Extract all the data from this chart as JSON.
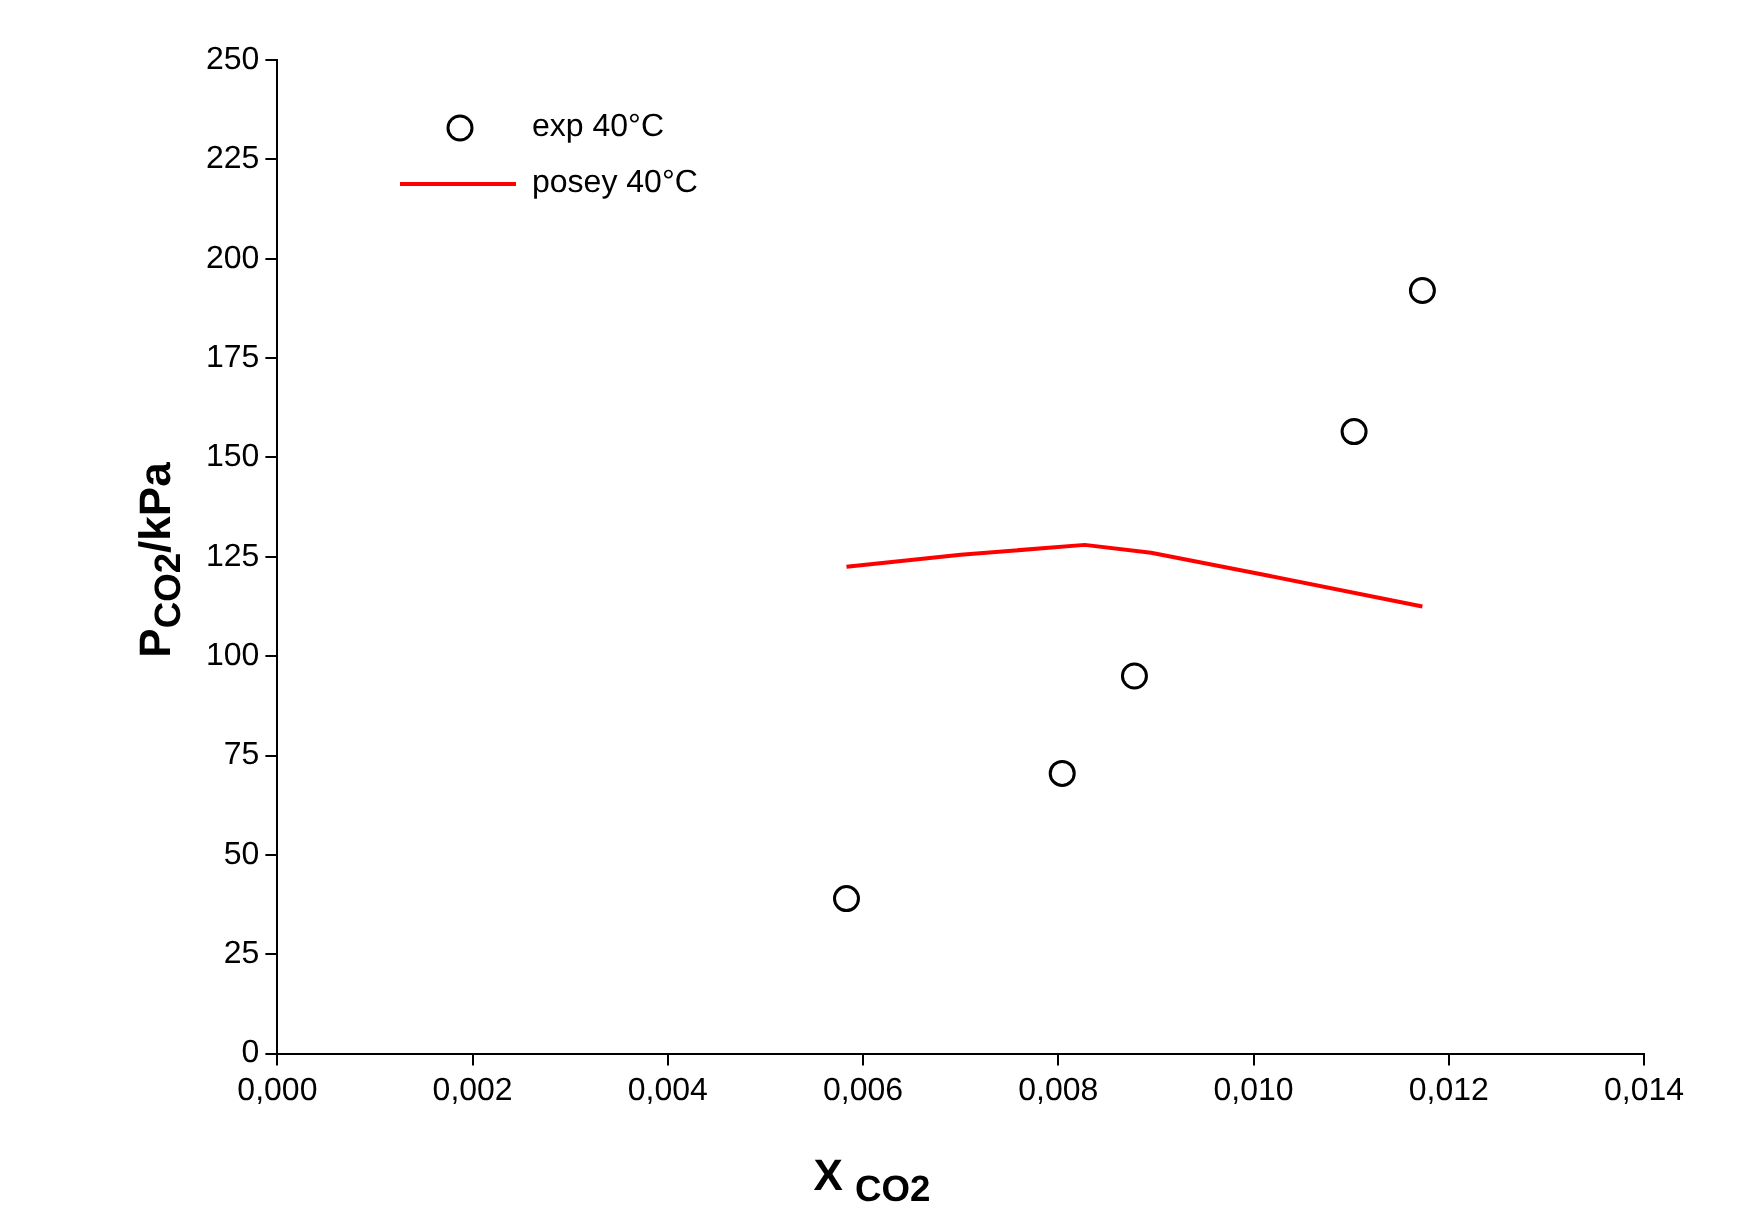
{
  "chart_data": {
    "type": "scatter",
    "xlabel": "X $_{CO2}$",
    "ylabel": "P$_{CO2}$/kPa",
    "xlim": [
      0,
      0.014
    ],
    "xticks": [
      {
        "value": 0,
        "label": "0,000"
      },
      {
        "value": 0.002,
        "label": "0,002"
      },
      {
        "value": 0.004,
        "label": "0,004"
      },
      {
        "value": 0.006,
        "label": "0,006"
      },
      {
        "value": 0.008,
        "label": "0,008"
      },
      {
        "value": 0.01,
        "label": "0,010"
      },
      {
        "value": 0.012,
        "label": "0,012"
      },
      {
        "value": 0.014,
        "label": "0,014"
      }
    ],
    "ylim": [
      0,
      250
    ],
    "yticks": [
      0,
      25,
      50,
      75,
      100,
      125,
      150,
      175,
      200,
      225,
      250
    ],
    "grid": false,
    "legend": "top left",
    "series": [
      {
        "name": "exp 40°C",
        "marker": "circle",
        "color": "#000000",
        "x": [
          0.00583,
          0.00804,
          0.00878,
          0.01103,
          0.01173
        ],
        "values": [
          39,
          70.5,
          95,
          156.5,
          192
        ]
      },
      {
        "name": "posey 40°C",
        "type": "line",
        "marker": "none",
        "color": "#ff0000",
        "x": [
          0.00583,
          0.007,
          0.00827,
          0.00895,
          0.01,
          0.01173
        ],
        "values": [
          122.5,
          125.5,
          128,
          126,
          121,
          112.5
        ]
      }
    ]
  }
}
